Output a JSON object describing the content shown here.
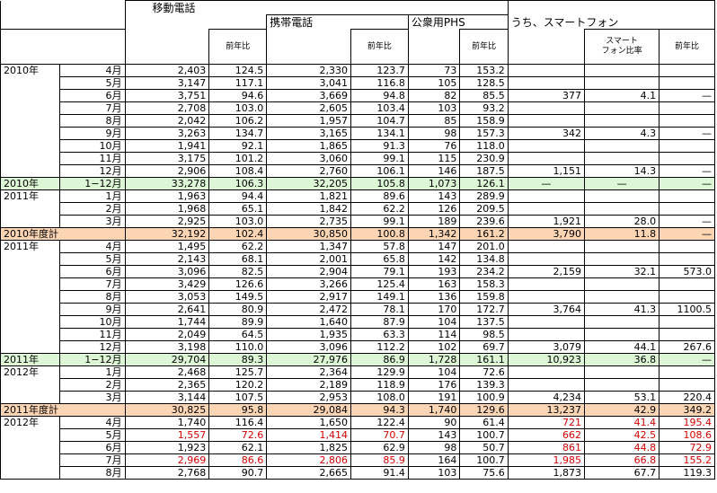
{
  "headers": {
    "mobile": "移動電話",
    "cellular": "携帯電話",
    "phs": "公衆用PHS",
    "smartphone": "うち、スマートフォン",
    "yoy": "前年比",
    "smart_ratio": "スマート\nフォン比率"
  },
  "colors": {
    "green_row": "#ddf7d6",
    "orange_row": "#fcd5b4",
    "red_text": "#d40000"
  },
  "rows": [
    {
      "year": "2010年",
      "period": "4月",
      "m": "2,403",
      "my": "124.5",
      "c": "2,330",
      "cy": "123.7",
      "p": "73",
      "py": "153.2",
      "s": "",
      "sr": "",
      "sy": "",
      "type": ""
    },
    {
      "year": "",
      "period": "5月",
      "m": "3,147",
      "my": "117.1",
      "c": "3,041",
      "cy": "116.8",
      "p": "105",
      "py": "128.5",
      "s": "",
      "sr": "",
      "sy": "",
      "type": ""
    },
    {
      "year": "",
      "period": "6月",
      "m": "3,751",
      "my": "94.6",
      "c": "3,669",
      "cy": "94.8",
      "p": "82",
      "py": "85.5",
      "s": "377",
      "sr": "4.1",
      "sy": "—",
      "type": ""
    },
    {
      "year": "",
      "period": "7月",
      "m": "2,708",
      "my": "103.0",
      "c": "2,605",
      "cy": "103.4",
      "p": "103",
      "py": "93.2",
      "s": "",
      "sr": "",
      "sy": "",
      "type": ""
    },
    {
      "year": "",
      "period": "8月",
      "m": "2,042",
      "my": "106.2",
      "c": "1,957",
      "cy": "104.7",
      "p": "85",
      "py": "158.9",
      "s": "",
      "sr": "",
      "sy": "",
      "type": ""
    },
    {
      "year": "",
      "period": "9月",
      "m": "3,263",
      "my": "134.7",
      "c": "3,165",
      "cy": "134.1",
      "p": "98",
      "py": "157.3",
      "s": "342",
      "sr": "4.3",
      "sy": "—",
      "type": ""
    },
    {
      "year": "",
      "period": "10月",
      "m": "1,941",
      "my": "92.1",
      "c": "1,865",
      "cy": "91.3",
      "p": "76",
      "py": "118.0",
      "s": "",
      "sr": "",
      "sy": "",
      "type": ""
    },
    {
      "year": "",
      "period": "11月",
      "m": "3,175",
      "my": "101.2",
      "c": "3,060",
      "cy": "99.1",
      "p": "115",
      "py": "230.9",
      "s": "",
      "sr": "",
      "sy": "",
      "type": ""
    },
    {
      "year": "",
      "period": "12月",
      "m": "2,906",
      "my": "108.4",
      "c": "2,760",
      "cy": "106.1",
      "p": "146",
      "py": "187.5",
      "s": "1,151",
      "sr": "14.3",
      "sy": "—",
      "type": ""
    },
    {
      "year": "2010年",
      "period": "1−12月",
      "m": "33,278",
      "my": "106.3",
      "c": "32,205",
      "cy": "105.8",
      "p": "1,073",
      "py": "126.1",
      "s": "—",
      "sr": "—",
      "sy": "—",
      "type": "g"
    },
    {
      "year": "2011年",
      "period": "1月",
      "m": "1,963",
      "my": "94.4",
      "c": "1,821",
      "cy": "89.6",
      "p": "143",
      "py": "289.9",
      "s": "",
      "sr": "",
      "sy": "",
      "type": ""
    },
    {
      "year": "",
      "period": "2月",
      "m": "1,968",
      "my": "65.1",
      "c": "1,842",
      "cy": "62.2",
      "p": "126",
      "py": "209.5",
      "s": "",
      "sr": "",
      "sy": "",
      "type": ""
    },
    {
      "year": "",
      "period": "3月",
      "m": "2,925",
      "my": "103.0",
      "c": "2,735",
      "cy": "99.1",
      "p": "189",
      "py": "239.6",
      "s": "1,921",
      "sr": "28.0",
      "sy": "—",
      "type": ""
    },
    {
      "year": "2010年度計",
      "period": "",
      "m": "32,192",
      "my": "102.4",
      "c": "30,850",
      "cy": "100.8",
      "p": "1,342",
      "py": "161.2",
      "s": "3,790",
      "sr": "11.8",
      "sy": "—",
      "type": "o"
    },
    {
      "year": "2011年",
      "period": "4月",
      "m": "1,495",
      "my": "62.2",
      "c": "1,347",
      "cy": "57.8",
      "p": "147",
      "py": "201.0",
      "s": "",
      "sr": "",
      "sy": "",
      "type": ""
    },
    {
      "year": "",
      "period": "5月",
      "m": "2,143",
      "my": "68.1",
      "c": "2,001",
      "cy": "65.8",
      "p": "142",
      "py": "134.8",
      "s": "",
      "sr": "",
      "sy": "",
      "type": ""
    },
    {
      "year": "",
      "period": "6月",
      "m": "3,096",
      "my": "82.5",
      "c": "2,904",
      "cy": "79.1",
      "p": "193",
      "py": "234.2",
      "s": "2,159",
      "sr": "32.1",
      "sy": "573.0",
      "type": ""
    },
    {
      "year": "",
      "period": "7月",
      "m": "3,429",
      "my": "126.6",
      "c": "3,266",
      "cy": "125.4",
      "p": "163",
      "py": "158.3",
      "s": "",
      "sr": "",
      "sy": "",
      "type": ""
    },
    {
      "year": "",
      "period": "8月",
      "m": "3,053",
      "my": "149.5",
      "c": "2,917",
      "cy": "149.1",
      "p": "136",
      "py": "159.8",
      "s": "",
      "sr": "",
      "sy": "",
      "type": ""
    },
    {
      "year": "",
      "period": "9月",
      "m": "2,641",
      "my": "80.9",
      "c": "2,472",
      "cy": "78.1",
      "p": "170",
      "py": "172.7",
      "s": "3,764",
      "sr": "41.3",
      "sy": "1100.5",
      "type": ""
    },
    {
      "year": "",
      "period": "10月",
      "m": "1,744",
      "my": "89.9",
      "c": "1,640",
      "cy": "87.9",
      "p": "104",
      "py": "137.5",
      "s": "",
      "sr": "",
      "sy": "",
      "type": ""
    },
    {
      "year": "",
      "period": "11月",
      "m": "2,049",
      "my": "64.5",
      "c": "1,935",
      "cy": "63.3",
      "p": "114",
      "py": "98.5",
      "s": "",
      "sr": "",
      "sy": "",
      "type": ""
    },
    {
      "year": "",
      "period": "12月",
      "m": "3,198",
      "my": "110.0",
      "c": "3,096",
      "cy": "112.2",
      "p": "102",
      "py": "69.7",
      "s": "3,079",
      "sr": "44.1",
      "sy": "267.6",
      "type": ""
    },
    {
      "year": "2011年",
      "period": "1−12月",
      "m": "29,704",
      "my": "89.3",
      "c": "27,976",
      "cy": "86.9",
      "p": "1,728",
      "py": "161.1",
      "s": "10,923",
      "sr": "36.8",
      "sy": "—",
      "type": "g"
    },
    {
      "year": "2012年",
      "period": "1月",
      "m": "2,468",
      "my": "125.7",
      "c": "2,364",
      "cy": "129.9",
      "p": "104",
      "py": "72.6",
      "s": "",
      "sr": "",
      "sy": "",
      "type": ""
    },
    {
      "year": "",
      "period": "2月",
      "m": "2,365",
      "my": "120.2",
      "c": "2,189",
      "cy": "118.9",
      "p": "176",
      "py": "139.3",
      "s": "",
      "sr": "",
      "sy": "",
      "type": ""
    },
    {
      "year": "",
      "period": "3月",
      "m": "3,144",
      "my": "107.5",
      "c": "2,953",
      "cy": "108.0",
      "p": "191",
      "py": "100.9",
      "s": "4,234",
      "sr": "53.1",
      "sy": "220.4",
      "type": ""
    },
    {
      "year": "2011年度計",
      "period": "",
      "m": "30,825",
      "my": "95.8",
      "c": "29,084",
      "cy": "94.3",
      "p": "1,740",
      "py": "129.6",
      "s": "13,237",
      "sr": "42.9",
      "sy": "349.2",
      "type": "o"
    },
    {
      "year": "2012年",
      "period": "4月",
      "m": "1,740",
      "my": "116.4",
      "c": "1,650",
      "cy": "122.4",
      "p": "90",
      "py": "61.4",
      "s": "721",
      "sr": "41.4",
      "sy": "195.4",
      "type": "",
      "red": [
        "s",
        "sr",
        "sy"
      ]
    },
    {
      "year": "",
      "period": "5月",
      "m": "1,557",
      "my": "72.6",
      "c": "1,414",
      "cy": "70.7",
      "p": "143",
      "py": "100.7",
      "s": "662",
      "sr": "42.5",
      "sy": "108.6",
      "type": "",
      "red": [
        "m",
        "my",
        "c",
        "cy",
        "s",
        "sr",
        "sy"
      ]
    },
    {
      "year": "",
      "period": "6月",
      "m": "1,923",
      "my": "62.1",
      "c": "1,825",
      "cy": "62.9",
      "p": "98",
      "py": "50.7",
      "s": "861",
      "sr": "44.8",
      "sy": "72.9",
      "type": "",
      "red": [
        "s",
        "sr",
        "sy"
      ]
    },
    {
      "year": "",
      "period": "7月",
      "m": "2,969",
      "my": "86.6",
      "c": "2,806",
      "cy": "85.9",
      "p": "164",
      "py": "100.7",
      "s": "1,985",
      "sr": "66.8",
      "sy": "155.2",
      "type": "",
      "red": [
        "m",
        "my",
        "c",
        "cy",
        "s",
        "sr",
        "sy"
      ]
    },
    {
      "year": "",
      "period": "8月",
      "m": "2,768",
      "my": "90.7",
      "c": "2,665",
      "cy": "91.4",
      "p": "103",
      "py": "75.6",
      "s": "1,873",
      "sr": "67.7",
      "sy": "119.3",
      "type": ""
    }
  ]
}
